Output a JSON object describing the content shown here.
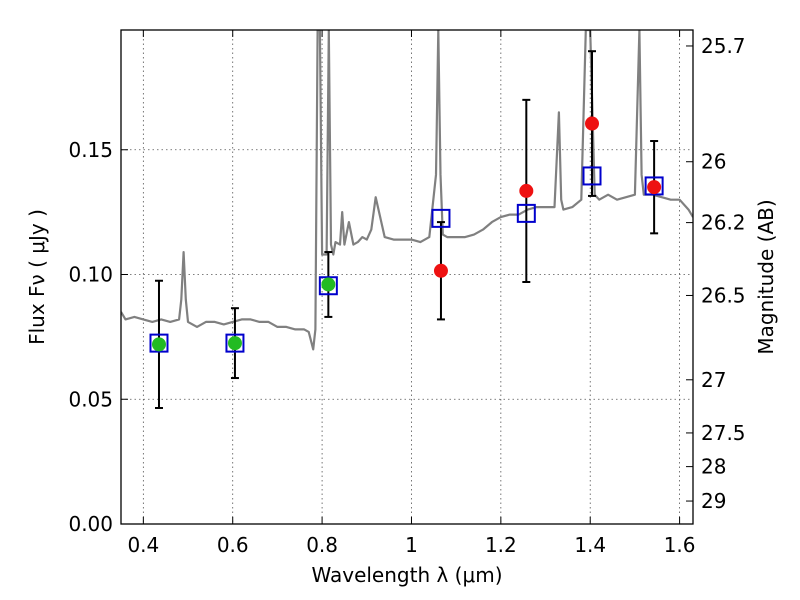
{
  "chart_data": {
    "type": "scatter",
    "xlabel": "Wavelength  λ (μm)",
    "ylabel": "Flux  Fν  ( μJy )",
    "ylabel_right": "Magnitude (AB)",
    "xlim": [
      0.35,
      1.63
    ],
    "ylim": [
      0.0,
      0.198
    ],
    "grid": true,
    "x_ticks": [
      {
        "value": 0.4,
        "label": "0.4"
      },
      {
        "value": 0.6,
        "label": "0.6"
      },
      {
        "value": 0.8,
        "label": "0.8"
      },
      {
        "value": 1.0,
        "label": "1"
      },
      {
        "value": 1.2,
        "label": "1.2"
      },
      {
        "value": 1.4,
        "label": "1.4"
      },
      {
        "value": 1.6,
        "label": "1.6"
      }
    ],
    "y_ticks": [
      {
        "value": 0.0,
        "label": "0.00"
      },
      {
        "value": 0.05,
        "label": "0.05"
      },
      {
        "value": 0.1,
        "label": "0.10"
      },
      {
        "value": 0.15,
        "label": "0.15"
      }
    ],
    "mag_ticks": [
      {
        "label": "25.7",
        "flux": 0.1916
      },
      {
        "label": "26",
        "flux": 0.1452
      },
      {
        "label": "26.2",
        "flux": 0.1208
      },
      {
        "label": "26.5",
        "flux": 0.0916
      },
      {
        "label": "27",
        "flux": 0.0578
      },
      {
        "label": "27.5",
        "flux": 0.0365
      },
      {
        "label": "28",
        "flux": 0.023
      },
      {
        "label": "29",
        "flux": 0.0092
      }
    ],
    "series": [
      {
        "kind": "model_spectrum",
        "color": "#808080",
        "x": [
          0.35,
          0.36,
          0.38,
          0.4,
          0.42,
          0.44,
          0.46,
          0.48,
          0.485,
          0.49,
          0.495,
          0.5,
          0.52,
          0.54,
          0.56,
          0.58,
          0.6,
          0.62,
          0.64,
          0.66,
          0.68,
          0.7,
          0.72,
          0.74,
          0.76,
          0.77,
          0.78,
          0.785,
          0.79,
          0.795,
          0.8,
          0.81,
          0.815,
          0.82,
          0.825,
          0.83,
          0.84,
          0.845,
          0.85,
          0.86,
          0.87,
          0.88,
          0.89,
          0.9,
          0.91,
          0.92,
          0.94,
          0.96,
          0.98,
          1.0,
          1.02,
          1.04,
          1.055,
          1.06,
          1.065,
          1.07,
          1.08,
          1.1,
          1.12,
          1.14,
          1.16,
          1.18,
          1.2,
          1.22,
          1.24,
          1.26,
          1.28,
          1.3,
          1.32,
          1.33,
          1.335,
          1.34,
          1.36,
          1.38,
          1.39,
          1.395,
          1.4,
          1.41,
          1.42,
          1.44,
          1.46,
          1.48,
          1.5,
          1.51,
          1.515,
          1.52,
          1.54,
          1.56,
          1.58,
          1.6,
          1.62,
          1.63
        ],
        "y": [
          0.085,
          0.082,
          0.083,
          0.082,
          0.081,
          0.082,
          0.081,
          0.082,
          0.09,
          0.109,
          0.09,
          0.081,
          0.079,
          0.081,
          0.081,
          0.08,
          0.081,
          0.082,
          0.082,
          0.081,
          0.081,
          0.079,
          0.079,
          0.078,
          0.078,
          0.077,
          0.07,
          0.078,
          0.198,
          0.198,
          0.108,
          0.108,
          0.198,
          0.112,
          0.108,
          0.113,
          0.112,
          0.125,
          0.112,
          0.121,
          0.112,
          0.113,
          0.115,
          0.114,
          0.118,
          0.131,
          0.115,
          0.114,
          0.114,
          0.114,
          0.113,
          0.115,
          0.14,
          0.198,
          0.14,
          0.116,
          0.115,
          0.115,
          0.115,
          0.116,
          0.118,
          0.121,
          0.123,
          0.124,
          0.124,
          0.126,
          0.127,
          0.127,
          0.127,
          0.165,
          0.13,
          0.126,
          0.127,
          0.13,
          0.198,
          0.198,
          0.198,
          0.132,
          0.13,
          0.132,
          0.13,
          0.131,
          0.132,
          0.198,
          0.14,
          0.132,
          0.132,
          0.131,
          0.13,
          0.13,
          0.126,
          0.123
        ]
      },
      {
        "kind": "model_photometry",
        "marker": "open-square",
        "color": "#0000cc",
        "x": [
          0.435,
          0.605,
          0.814,
          1.066,
          1.257,
          1.404,
          1.543
        ],
        "y": [
          0.0725,
          0.0725,
          0.0955,
          0.1225,
          0.1245,
          0.1395,
          0.1355
        ]
      },
      {
        "kind": "observed_detections",
        "marker": "filled-circle",
        "color": "#22bb22",
        "x": [
          0.435,
          0.605,
          0.814
        ],
        "y": [
          0.072,
          0.0725,
          0.096
        ],
        "yerr": [
          0.0255,
          0.014,
          0.013
        ]
      },
      {
        "kind": "observed_ir",
        "marker": "filled-circle",
        "color": "#ee1111",
        "x": [
          1.066,
          1.257,
          1.404,
          1.543
        ],
        "y": [
          0.1015,
          0.1335,
          0.1605,
          0.135
        ],
        "yerr": [
          0.0195,
          0.0365,
          0.029,
          0.0185
        ]
      }
    ],
    "colors": {
      "spectrum": "#808080",
      "square": "#0000cc",
      "green": "#22bb22",
      "red": "#ee1111",
      "errorbar": "#000000",
      "grid": "#555555"
    }
  }
}
